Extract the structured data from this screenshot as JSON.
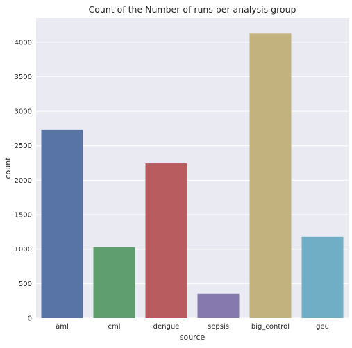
{
  "chart_data": {
    "type": "bar",
    "title": "Count of the Number of runs per analysis group",
    "xlabel": "source",
    "ylabel": "count",
    "categories": [
      "aml",
      "cml",
      "dengue",
      "sepsis",
      "big_control",
      "geu"
    ],
    "values": [
      2730,
      1030,
      2245,
      355,
      4125,
      1180
    ],
    "colors": [
      "#5874a6",
      "#5f9e6e",
      "#b85c60",
      "#8679ad",
      "#c2b37e",
      "#6faec4"
    ],
    "ylim": [
      0,
      4350
    ],
    "yticks": [
      0,
      500,
      1000,
      1500,
      2000,
      2500,
      3000,
      3500,
      4000
    ],
    "ytick_labels": [
      "0",
      "500",
      "1000",
      "1500",
      "2000",
      "2500",
      "3000",
      "3500",
      "4000"
    ],
    "grid": true,
    "background": "#eaeaf2"
  }
}
